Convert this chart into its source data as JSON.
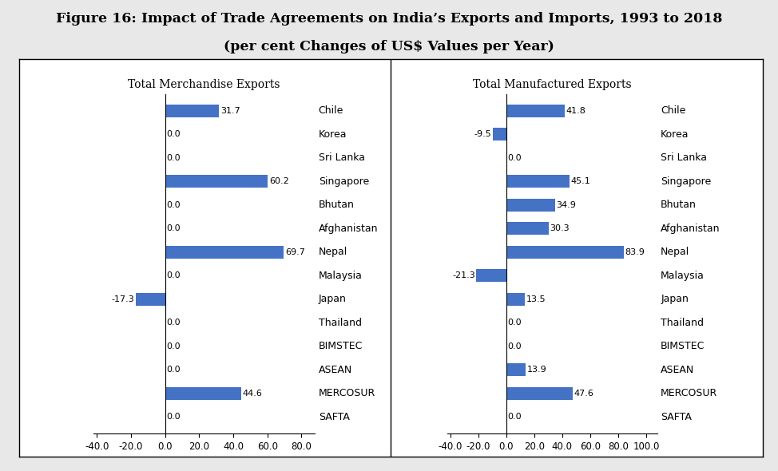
{
  "title_line1": "Figure 16: Impact of Trade Agreements on India’s Exports and Imports, 1993 to 2018",
  "title_line2": "(per cent Changes of US$ Values per Year)",
  "left_subtitle": "Total Merchandise Exports",
  "right_subtitle": "Total Manufactured Exports",
  "categories": [
    "Chile",
    "Korea",
    "Sri Lanka",
    "Singapore",
    "Bhutan",
    "Afghanistan",
    "Nepal",
    "Malaysia",
    "Japan",
    "Thailand",
    "BIMSTEC",
    "ASEAN",
    "MERCOSUR",
    "SAFTA"
  ],
  "left_values": [
    31.7,
    0.0,
    0.0,
    60.2,
    0.0,
    0.0,
    69.7,
    0.0,
    -17.3,
    0.0,
    0.0,
    0.0,
    44.6,
    0.0
  ],
  "right_values": [
    41.8,
    -9.5,
    0.0,
    45.1,
    34.9,
    30.3,
    83.9,
    -21.3,
    13.5,
    0.0,
    0.0,
    13.9,
    47.6,
    0.0
  ],
  "bar_color": "#4472C4",
  "left_xlim": [
    -42,
    88
  ],
  "right_xlim": [
    -42,
    108
  ],
  "left_xticks": [
    -40.0,
    -20.0,
    0.0,
    20.0,
    40.0,
    60.0,
    80.0
  ],
  "right_xticks": [
    -40.0,
    -20.0,
    0.0,
    20.0,
    40.0,
    60.0,
    80.0,
    100.0
  ],
  "bg_color": "#ffffff",
  "outer_bg": "#e8e8e8",
  "bar_height": 0.55,
  "title_fontsize": 12.5,
  "subtitle_fontsize": 10,
  "label_fontsize": 9,
  "tick_fontsize": 8.5,
  "val_fontsize": 8
}
